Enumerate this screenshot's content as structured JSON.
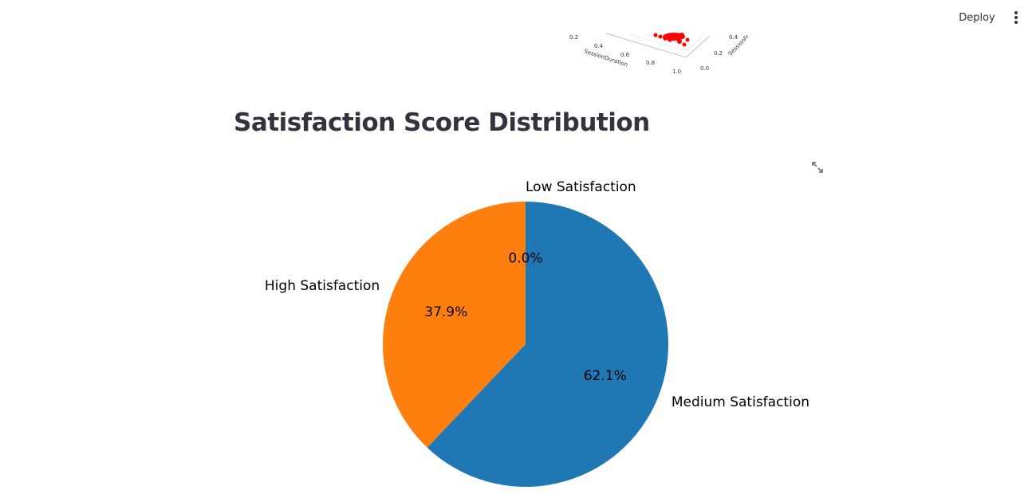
{
  "header": {
    "deploy_label": "Deploy",
    "menu_icon": "vertical-ellipsis-icon"
  },
  "previous_chart": {
    "type": "scatter3d",
    "point_color": "#ff0000",
    "x_axis_label": "SessionDuration",
    "x_ticks": [
      "0.2",
      "0.4",
      "0.6",
      "0.8",
      "1.0"
    ],
    "y_axis_label": "SessionFr",
    "y_ticks": [
      "0.0",
      "0.2",
      "0.4"
    ]
  },
  "section": {
    "title": "Satisfaction Score Distribution",
    "fullscreen_icon": "expand-arrows-icon"
  },
  "chart_data": {
    "type": "pie",
    "title": "",
    "start_angle_deg": 90,
    "slices": [
      {
        "label": "Low Satisfaction",
        "value": 0.0,
        "pct_label": "0.0%",
        "color": "#1f77b4"
      },
      {
        "label": "High Satisfaction",
        "value": 37.9,
        "pct_label": "37.9%",
        "color": "#ff7f0e"
      },
      {
        "label": "Medium Satisfaction",
        "value": 62.1,
        "pct_label": "62.1%",
        "color": "#1f77b4"
      }
    ]
  }
}
